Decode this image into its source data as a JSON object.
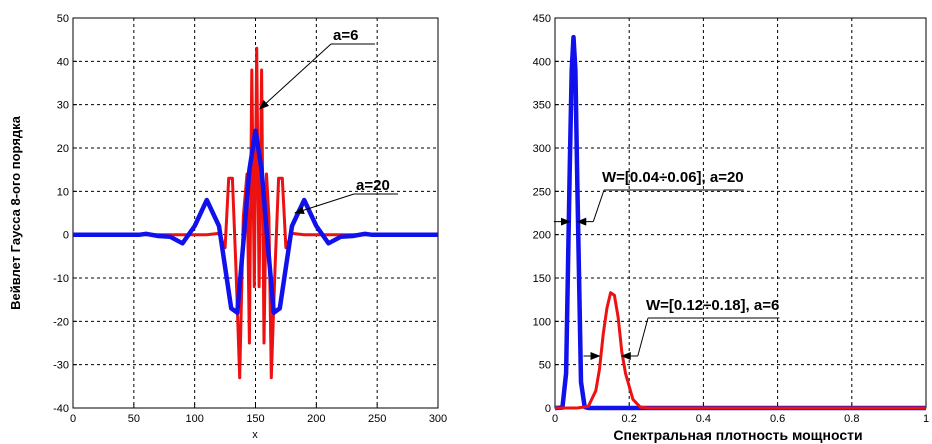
{
  "chart_data": [
    {
      "type": "line",
      "ylabel": "Вейвлет Гаусса 8-ого порядка",
      "xlabel": "x",
      "xlim": [
        0,
        300
      ],
      "ylim": [
        -40,
        50
      ],
      "xticks": [
        0,
        50,
        100,
        150,
        200,
        250,
        300
      ],
      "yticks": [
        -40,
        -30,
        -20,
        -10,
        0,
        10,
        20,
        30,
        40,
        50
      ],
      "grid": true,
      "series": [
        {
          "color": "#ee1111",
          "x": [
            0,
            110,
            120,
            125,
            128,
            131,
            134,
            137,
            140,
            143,
            145,
            147,
            149,
            151,
            153,
            155,
            157,
            159,
            161,
            163,
            166,
            169,
            172,
            175,
            180,
            190,
            300
          ],
          "y": [
            0,
            0,
            0.3,
            -3,
            13,
            13,
            -8,
            -33,
            4,
            14,
            -25,
            38,
            -12,
            43,
            -12,
            38,
            -25,
            14,
            4,
            -33,
            -8,
            13,
            13,
            -3,
            0.3,
            0,
            0
          ]
        },
        {
          "color": "#1111ee",
          "x": [
            0,
            55,
            60,
            70,
            80,
            90,
            100,
            110,
            120,
            130,
            135,
            140,
            145,
            150,
            155,
            160,
            165,
            170,
            180,
            190,
            200,
            210,
            220,
            230,
            240,
            245,
            300
          ],
          "y": [
            0,
            0,
            0.2,
            -0.3,
            -0.5,
            -2,
            2,
            8,
            2,
            -17,
            -18,
            -2,
            15,
            24,
            15,
            -2,
            -18,
            -17,
            2,
            8,
            2,
            -2,
            -0.5,
            -0.3,
            0.2,
            0,
            0
          ]
        }
      ],
      "annotations": [
        {
          "text": "a=6",
          "point": [
            151,
            29
          ]
        },
        {
          "text": "a=20",
          "point": [
            180,
            5
          ]
        }
      ]
    },
    {
      "type": "line",
      "xlabel": "Спектральная плотность мощности",
      "xlim": [
        0,
        1
      ],
      "ylim": [
        0,
        450
      ],
      "xticks": [
        0,
        0.2,
        0.4,
        0.6,
        0.8,
        1
      ],
      "yticks": [
        0,
        50,
        100,
        150,
        200,
        250,
        300,
        350,
        400,
        450
      ],
      "grid": true,
      "series": [
        {
          "color": "#1111ee",
          "x": [
            0,
            0.02,
            0.03,
            0.04,
            0.045,
            0.05,
            0.055,
            0.06,
            0.07,
            0.08,
            0.09,
            1
          ],
          "y": [
            0,
            0.5,
            40,
            280,
            390,
            428,
            390,
            260,
            30,
            1,
            0,
            0
          ]
        },
        {
          "color": "#ee1111",
          "x": [
            0,
            0.06,
            0.09,
            0.11,
            0.12,
            0.13,
            0.14,
            0.15,
            0.16,
            0.17,
            0.18,
            0.19,
            0.21,
            0.23,
            0.25,
            1
          ],
          "y": [
            0,
            0,
            2,
            20,
            45,
            85,
            115,
            133,
            130,
            105,
            65,
            40,
            10,
            1,
            0,
            0
          ]
        }
      ],
      "annotations": [
        {
          "text": "W=[0.04÷0.06], a=20",
          "range": [
            0.04,
            0.06
          ],
          "y": 215
        },
        {
          "text": "W=[0.12÷0.18], a=6",
          "range": [
            0.12,
            0.18
          ],
          "y": 60
        }
      ]
    }
  ]
}
